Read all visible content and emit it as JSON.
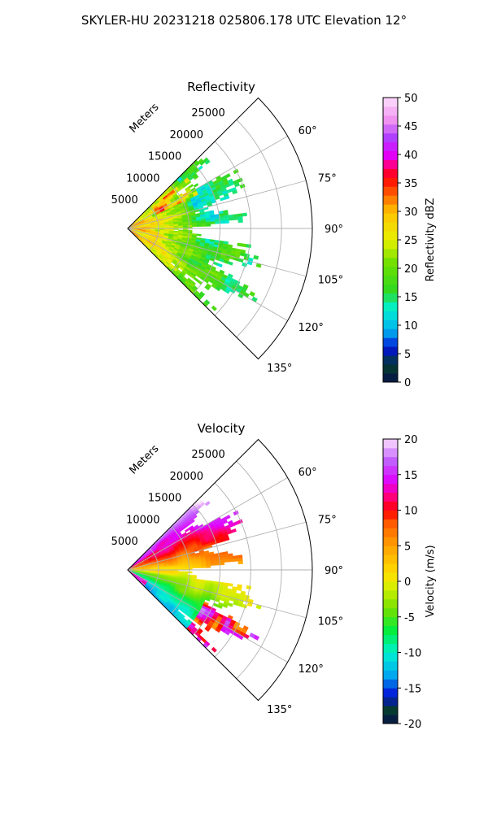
{
  "figure": {
    "title": "SKYLER-HU  20231218  025806.178 UTC Elevation 12°"
  },
  "chart_data": [
    {
      "type": "heatmap",
      "projection": "polar-sector",
      "title": "Reflectivity",
      "radial_label": "Meters",
      "radial_ticks": [
        "5000",
        "10000",
        "15000",
        "20000",
        "25000"
      ],
      "radial_tick_values": [
        5000,
        10000,
        15000,
        20000,
        25000
      ],
      "rlim": [
        0,
        30000
      ],
      "angle_ticks": [
        "60°",
        "75°",
        "90°",
        "105°",
        "120°",
        "135°"
      ],
      "angle_tick_values": [
        60,
        75,
        90,
        105,
        120,
        135
      ],
      "theta_range": [
        45,
        135
      ],
      "grid": true,
      "colorbar": {
        "label": "Reflectivity dBZ",
        "min": 0,
        "max": 50,
        "ticks": [
          "0",
          "5",
          "10",
          "15",
          "20",
          "25",
          "30",
          "35",
          "40",
          "45",
          "50"
        ],
        "tick_values": [
          0,
          5,
          10,
          15,
          20,
          25,
          30,
          35,
          40,
          45,
          50
        ],
        "stops": [
          {
            "v": 0,
            "c": "#08104a"
          },
          {
            "v": 3,
            "c": "#063d2e"
          },
          {
            "v": 6,
            "c": "#0010d8"
          },
          {
            "v": 9,
            "c": "#00b0f0"
          },
          {
            "v": 13,
            "c": "#00f0d0"
          },
          {
            "v": 16,
            "c": "#30d820"
          },
          {
            "v": 21,
            "c": "#70e000"
          },
          {
            "v": 25,
            "c": "#e8f000"
          },
          {
            "v": 30,
            "c": "#ffc000"
          },
          {
            "v": 33,
            "c": "#ff6000"
          },
          {
            "v": 36,
            "c": "#ff0000"
          },
          {
            "v": 38,
            "c": "#ff0080"
          },
          {
            "v": 40,
            "c": "#e000ff"
          },
          {
            "v": 43,
            "c": "#b040ff"
          },
          {
            "v": 46,
            "c": "#f090f0"
          },
          {
            "v": 50,
            "c": "#fce0fc"
          }
        ]
      }
    },
    {
      "type": "heatmap",
      "projection": "polar-sector",
      "title": "Velocity",
      "radial_label": "Meters",
      "radial_ticks": [
        "5000",
        "10000",
        "15000",
        "20000",
        "25000"
      ],
      "radial_tick_values": [
        5000,
        10000,
        15000,
        20000,
        25000
      ],
      "rlim": [
        0,
        30000
      ],
      "angle_ticks": [
        "60°",
        "75°",
        "90°",
        "105°",
        "120°",
        "135°"
      ],
      "angle_tick_values": [
        60,
        75,
        90,
        105,
        120,
        135
      ],
      "theta_range": [
        45,
        135
      ],
      "grid": true,
      "colorbar": {
        "label": "Velocity (m/s)",
        "min": -20,
        "max": 20,
        "ticks": [
          "-20",
          "-15",
          "-10",
          "-5",
          "0",
          "5",
          "10",
          "15",
          "20"
        ],
        "tick_values": [
          -20,
          -15,
          -10,
          -5,
          0,
          5,
          10,
          15,
          20
        ],
        "stops": [
          {
            "v": -20,
            "c": "#08104a"
          },
          {
            "v": -18,
            "c": "#063d2e"
          },
          {
            "v": -16,
            "c": "#0010d8"
          },
          {
            "v": -13,
            "c": "#00b0f0"
          },
          {
            "v": -10,
            "c": "#00f0d0"
          },
          {
            "v": -7,
            "c": "#00ee40"
          },
          {
            "v": -4,
            "c": "#70e000"
          },
          {
            "v": -1,
            "c": "#d0f000"
          },
          {
            "v": 1,
            "c": "#ffe000"
          },
          {
            "v": 5,
            "c": "#ffa000"
          },
          {
            "v": 8,
            "c": "#ff6000"
          },
          {
            "v": 10,
            "c": "#ff0000"
          },
          {
            "v": 12,
            "c": "#ff0080"
          },
          {
            "v": 14,
            "c": "#e000ff"
          },
          {
            "v": 17,
            "c": "#c060ff"
          },
          {
            "v": 20,
            "c": "#fce0fc"
          }
        ]
      }
    }
  ]
}
